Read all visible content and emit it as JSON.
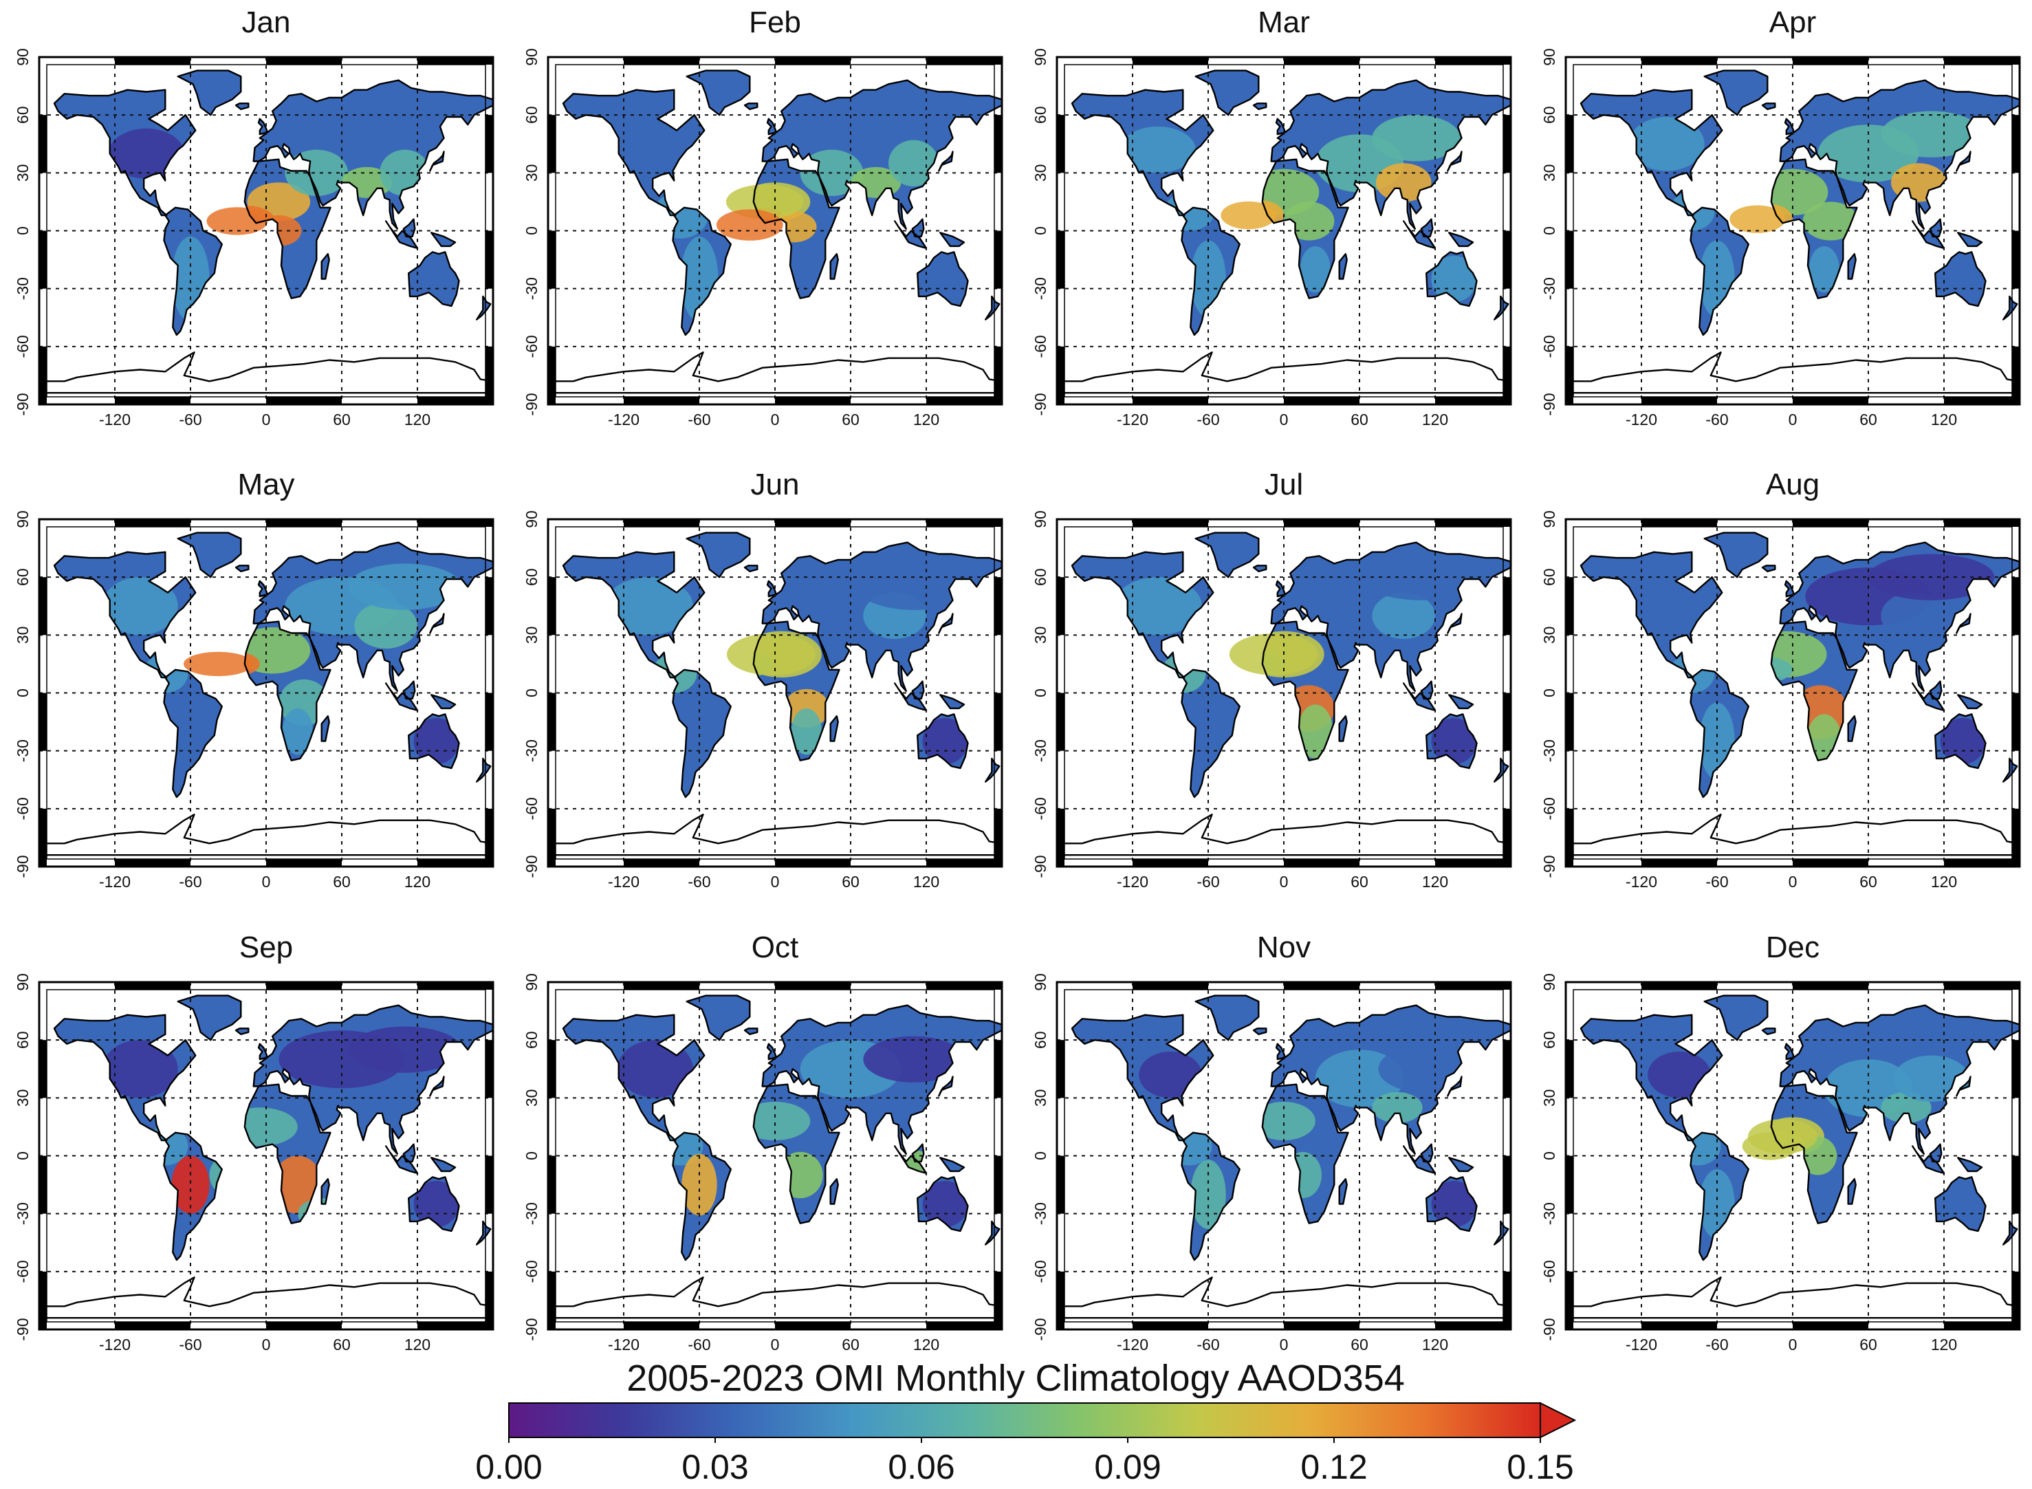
{
  "title": "2005-2023 OMI Monthly Climatology AAOD354",
  "months": [
    "Jan",
    "Feb",
    "Mar",
    "Apr",
    "May",
    "Jun",
    "Jul",
    "Aug",
    "Sep",
    "Oct",
    "Nov",
    "Dec"
  ],
  "axes": {
    "lon_ticks": [
      "-120",
      "-60",
      "0",
      "60",
      "120"
    ],
    "lat_ticks": [
      "90",
      "60",
      "30",
      "0",
      "-30",
      "-60",
      "-90"
    ],
    "lon_range": [
      -180,
      180
    ],
    "lat_range": [
      -90,
      90
    ]
  },
  "colorbar": {
    "ticks": [
      "0.00",
      "0.03",
      "0.06",
      "0.09",
      "0.12",
      "0.15"
    ],
    "range": [
      0,
      0.15
    ],
    "extend": "max",
    "colors": [
      "#5e1a86",
      "#3d3a9c",
      "#3a68b8",
      "#4597c4",
      "#5bb3a6",
      "#86c46a",
      "#c2c84a",
      "#e6ac3a",
      "#e8742c",
      "#d8291f"
    ]
  },
  "chart_data": {
    "type": "map-grid",
    "title": "2005-2023 OMI Monthly Climatology AAOD354",
    "variable": "AAOD354",
    "panels": [
      "Jan",
      "Feb",
      "Mar",
      "Apr",
      "May",
      "Jun",
      "Jul",
      "Aug",
      "Sep",
      "Oct",
      "Nov",
      "Dec"
    ],
    "xlabel_ticks": [
      -120,
      -60,
      0,
      60,
      120
    ],
    "ylabel_ticks": [
      90,
      60,
      30,
      0,
      -30,
      -60,
      -90
    ],
    "colorbar_range": [
      0.0,
      0.15
    ],
    "colorbar_ticks": [
      0.0,
      0.03,
      0.06,
      0.09,
      0.12,
      0.15
    ]
  }
}
